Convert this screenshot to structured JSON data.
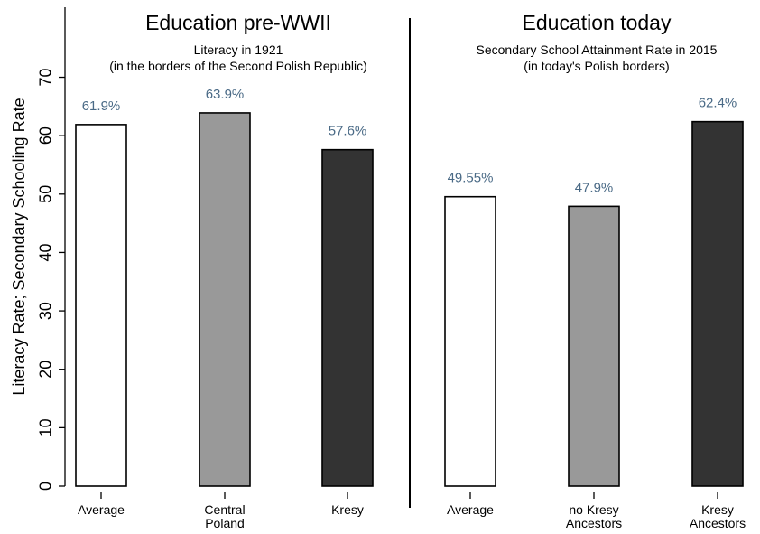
{
  "chart_data": {
    "type": "bar",
    "ylabel": "Literacy Rate; Secondary Schooling Rate",
    "ylim": [
      0,
      75
    ],
    "yticks": [
      0,
      10,
      20,
      30,
      40,
      50,
      60,
      70
    ],
    "grid": false,
    "panels": [
      {
        "title": "Education pre-WWII",
        "subtitle_line1": "Literacy in 1921",
        "subtitle_line2": "(in the borders of the Second Polish Republic)",
        "bars": [
          {
            "category": [
              "Average"
            ],
            "value": 61.9,
            "label": "61.9%",
            "fill": "#ffffff"
          },
          {
            "category": [
              "Central",
              "Poland"
            ],
            "value": 63.9,
            "label": "63.9%",
            "fill": "#999999"
          },
          {
            "category": [
              "Kresy"
            ],
            "value": 57.6,
            "label": "57.6%",
            "fill": "#333333"
          }
        ]
      },
      {
        "title": "Education today",
        "subtitle_line1": "Secondary School Attainment Rate in 2015",
        "subtitle_line2": "(in today's Polish borders)",
        "bars": [
          {
            "category": [
              "Average"
            ],
            "value": 49.55,
            "label": "49.55%",
            "fill": "#ffffff"
          },
          {
            "category": [
              "no Kresy",
              "Ancestors"
            ],
            "value": 47.9,
            "label": "47.9%",
            "fill": "#999999"
          },
          {
            "category": [
              "Kresy",
              "Ancestors"
            ],
            "value": 62.4,
            "label": "62.4%",
            "fill": "#333333"
          }
        ]
      }
    ]
  },
  "colors": {
    "value_label": "#4a6a86",
    "axis": "#000000",
    "bar_stroke": "#000000"
  }
}
